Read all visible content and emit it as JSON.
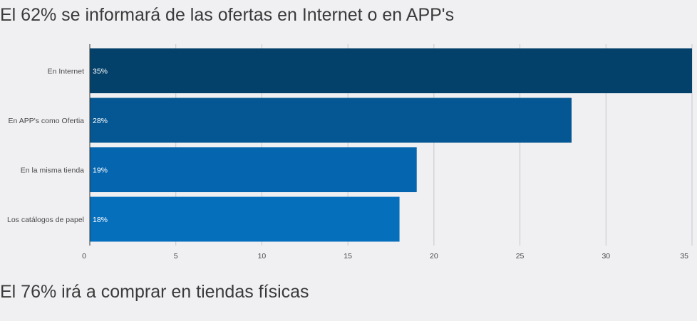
{
  "headline1": "El 62% se informará de las ofertas en Internet o en APP's",
  "headline2": "El 76% irá a comprar en tiendas físicas",
  "chart_data": {
    "type": "bar",
    "orientation": "horizontal",
    "categories": [
      "En Internet",
      "En APP's como Ofertia",
      "En la misma tienda",
      "Los catálogos de papel"
    ],
    "values": [
      35,
      28,
      19,
      18
    ],
    "data_labels": [
      "35%",
      "28%",
      "19%",
      "18%"
    ],
    "colors": [
      "#03406a",
      "#045792",
      "#0565af",
      "#066fbc"
    ],
    "xlim": [
      0,
      35
    ],
    "xticks": [
      0,
      5,
      10,
      15,
      20,
      25,
      30,
      35
    ],
    "grid": true
  }
}
